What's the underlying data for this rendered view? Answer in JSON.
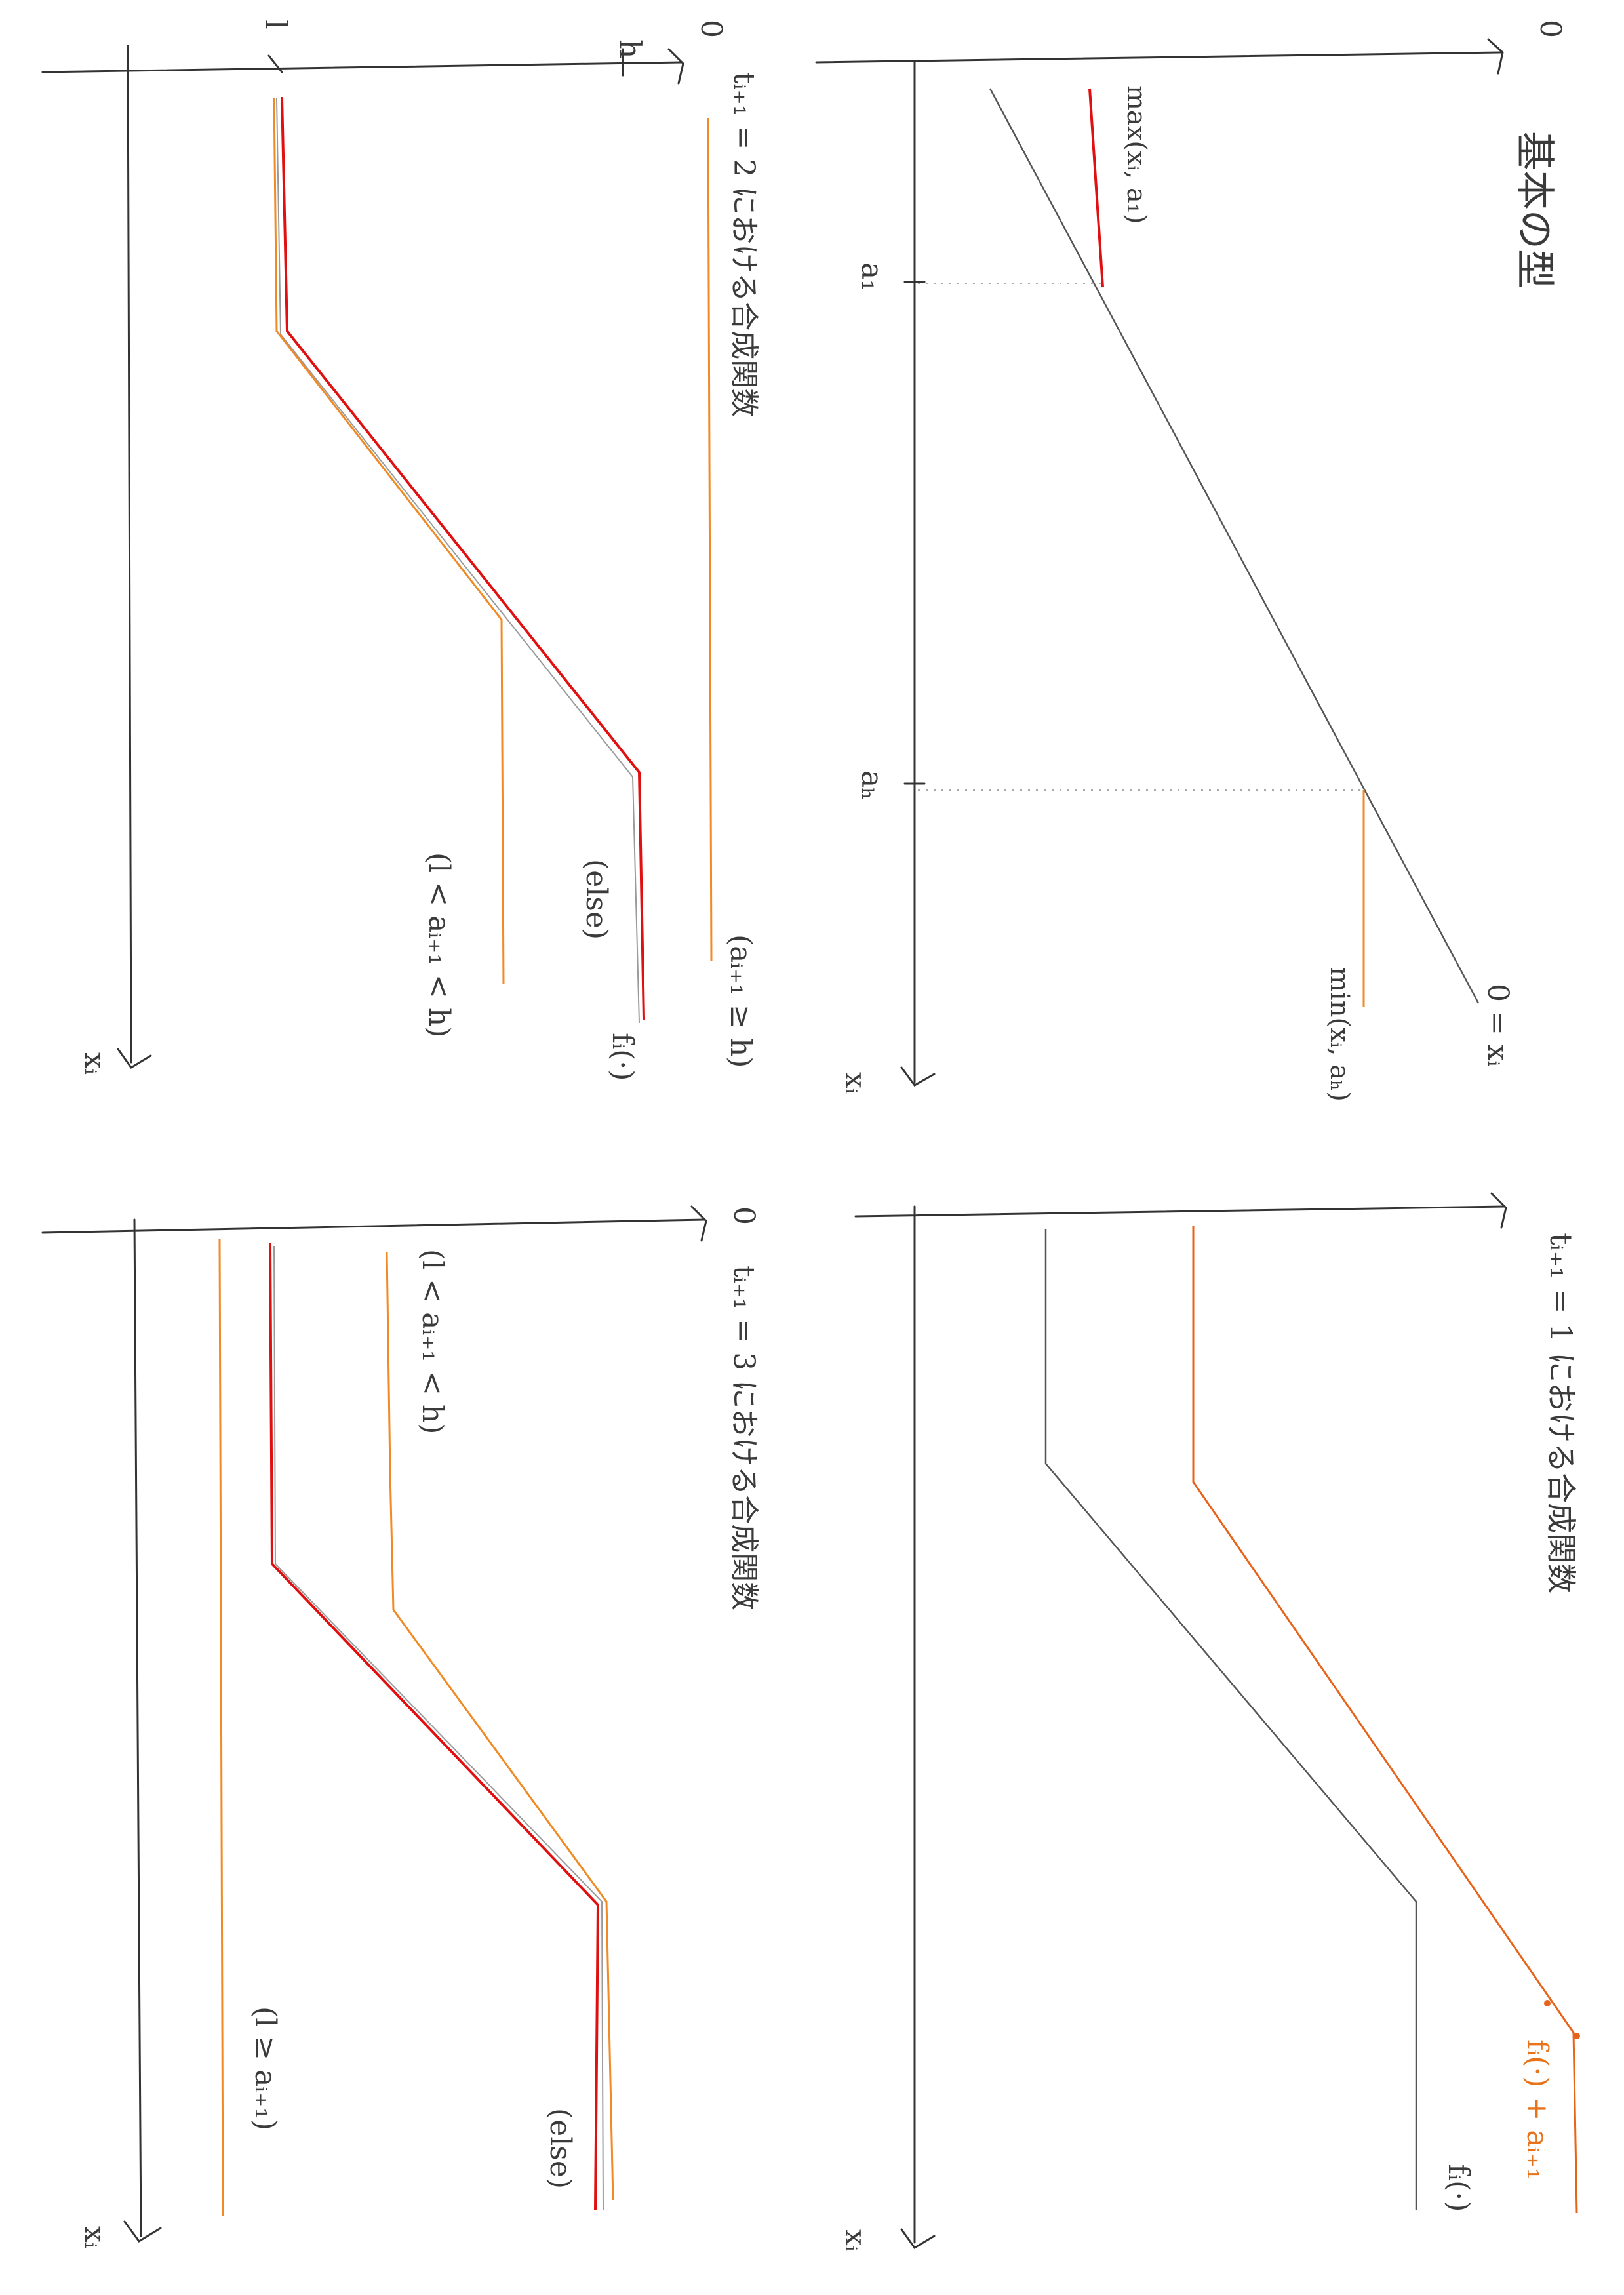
{
  "panels": {
    "basic": {
      "heading": "基本の型",
      "axis_origin": "0",
      "axis_x": "xᵢ",
      "tick_a1": "a₁",
      "tick_ah": "aₕ",
      "label_max": "max(xᵢ, a₁)",
      "label_min": "min(xᵢ, aₕ)",
      "label_line": "0 = xᵢ"
    },
    "t1": {
      "heading": "tᵢ₊₁ = 1 における合成関数",
      "axis_x": "xᵢ",
      "label_shifted": "fᵢ(·) + aᵢ₊₁",
      "label_f": "fᵢ(·)"
    },
    "t2": {
      "heading": "tᵢ₊₁ = 2 における合成関数",
      "axis_origin": "0",
      "axis_y": "h",
      "axis_tick": "l",
      "axis_x": "xᵢ",
      "label_cond1": "(aᵢ₊₁ ≥ h)",
      "label_else": "(else)",
      "label_f": "fᵢ(·)",
      "label_cond2": "(l < aᵢ₊₁ < h)"
    },
    "t3": {
      "heading": "tᵢ₊₁ = 3 における合成関数",
      "axis_origin": "0",
      "axis_x": "xᵢ",
      "label_cond1": "(l < aᵢ₊₁ < h)",
      "label_else": "(else)",
      "label_cond2": "(l ≥ aᵢ₊₁)"
    }
  },
  "colors": {
    "pencil": "#333333",
    "orange": "#f08a24",
    "red": "#e01010"
  }
}
